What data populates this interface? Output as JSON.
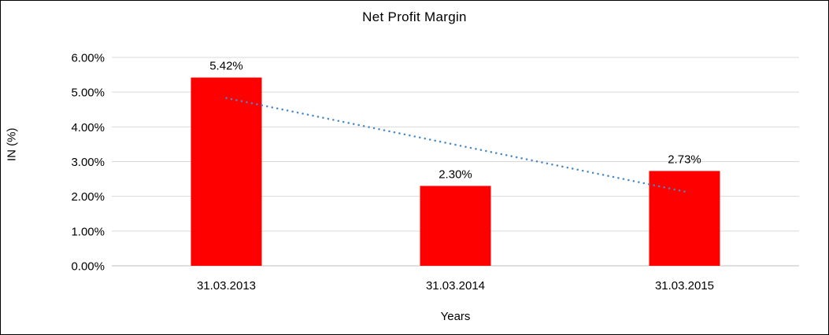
{
  "chart_data": {
    "type": "bar",
    "title": "Net Profit Margin",
    "xlabel": "Years",
    "ylabel": "IN (%)",
    "categories": [
      "31.03.2013",
      "31.03.2014",
      "31.03.2015"
    ],
    "values": [
      5.42,
      2.3,
      2.73
    ],
    "data_labels": [
      "5.42%",
      "2.30%",
      "2.73%"
    ],
    "ylim": [
      0,
      6
    ],
    "ytick_step": 1,
    "ytick_labels": [
      "0.00%",
      "1.00%",
      "2.00%",
      "3.00%",
      "4.00%",
      "5.00%",
      "6.00%"
    ],
    "grid": true,
    "legend_position": "none",
    "bar_color": "#ff0000",
    "gridline_color": "#d9d9d9",
    "axis_line_color": "#bfbfbf",
    "text_color": "#000000",
    "trendline": {
      "style": "dotted",
      "color": "#4a89c4",
      "start_value": 4.83,
      "end_value": 2.14
    }
  }
}
